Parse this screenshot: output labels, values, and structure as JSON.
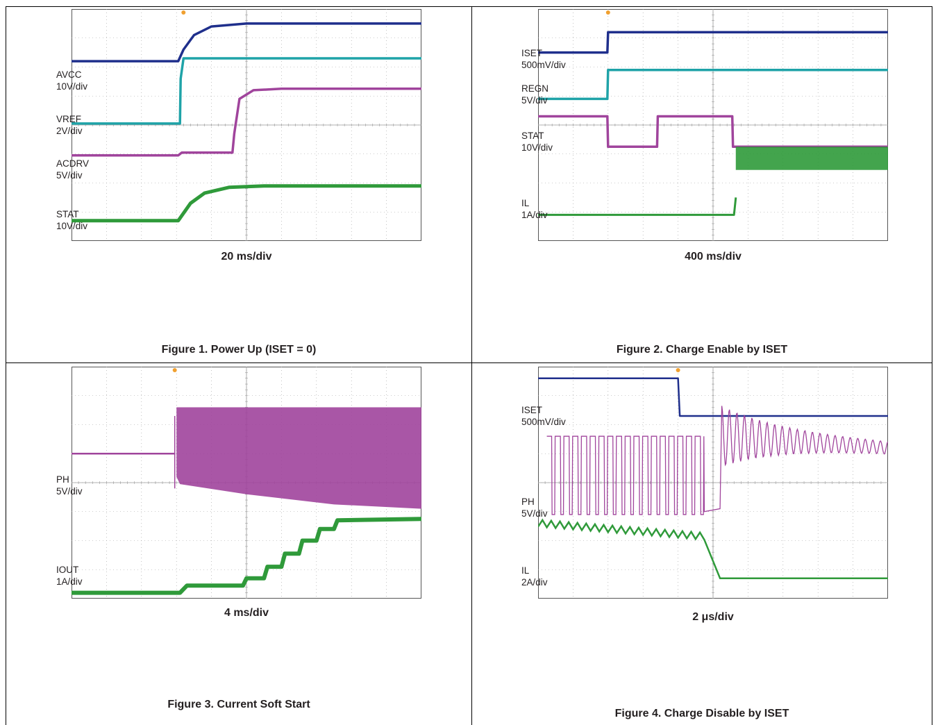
{
  "figures": [
    {
      "caption": "Figure 1. Power Up (ISET = 0)",
      "timebase": "20 ms/div",
      "channels": [
        {
          "label": "AVCC",
          "scale": "10V/div"
        },
        {
          "label": "VREF",
          "scale": "2V/div"
        },
        {
          "label": "ACDRV",
          "scale": "5V/div"
        },
        {
          "label": "STAT",
          "scale": "10V/div"
        }
      ]
    },
    {
      "caption": "Figure 2. Charge Enable by ISET",
      "timebase": "400 ms/div",
      "channels": [
        {
          "label": "ISET",
          "scale": "500mV/div"
        },
        {
          "label": "REGN",
          "scale": "5V/div"
        },
        {
          "label": "STAT",
          "scale": "10V/div"
        },
        {
          "label": "IL",
          "scale": "1A/div"
        }
      ]
    },
    {
      "caption": "Figure 3. Current Soft Start",
      "timebase": "4 ms/div",
      "channels": [
        {
          "label": "PH",
          "scale": "5V/div"
        },
        {
          "label": "IOUT",
          "scale": "1A/div"
        }
      ]
    },
    {
      "caption": "Figure 4. Charge Disable by ISET",
      "timebase": "2 μs/div",
      "channels": [
        {
          "label": "ISET",
          "scale": "500mV/div"
        },
        {
          "label": "PH",
          "scale": "5V/div"
        },
        {
          "label": "IL",
          "scale": "2A/div"
        }
      ]
    }
  ],
  "colors": {
    "blue": "#1f2f8c",
    "cyan": "#1fa3a8",
    "magenta": "#a0449c",
    "green": "#2f9a3a",
    "grid": "#9a9a9a",
    "frame": "#555555",
    "trigger_marker": "#f0a030"
  },
  "chart_data": [
    {
      "type": "line",
      "title": "Figure 1. Power Up (ISET = 0)",
      "xlabel": "20 ms/div",
      "x_units": "div",
      "xlim": [
        0,
        10
      ],
      "ylim": [
        0,
        8
      ],
      "grid": true,
      "series": [
        {
          "name": "AVCC",
          "x": [
            0,
            3.05,
            3.2,
            3.5,
            4.0,
            5.0,
            10
          ],
          "y": [
            6.2,
            6.2,
            6.6,
            7.1,
            7.4,
            7.5,
            7.5
          ]
        },
        {
          "name": "VREF",
          "x": [
            0,
            3.1,
            3.12,
            3.2,
            10
          ],
          "y": [
            4.05,
            4.05,
            5.6,
            6.3,
            6.3
          ]
        },
        {
          "name": "ACDRV",
          "x": [
            0,
            3.05,
            3.15,
            4.6,
            4.65,
            4.8,
            5.2,
            6,
            10
          ],
          "y": [
            2.95,
            2.95,
            3.05,
            3.05,
            3.7,
            4.9,
            5.2,
            5.25,
            5.25
          ]
        },
        {
          "name": "STAT",
          "x": [
            0,
            3.05,
            3.4,
            3.8,
            4.5,
            5.5,
            10
          ],
          "y": [
            0.7,
            0.7,
            1.3,
            1.65,
            1.85,
            1.9,
            1.9
          ]
        }
      ]
    },
    {
      "type": "line",
      "title": "Figure 2. Charge Enable by ISET",
      "xlabel": "400 ms/div",
      "x_units": "div",
      "xlim": [
        0,
        10
      ],
      "ylim": [
        0,
        8
      ],
      "grid": true,
      "series": [
        {
          "name": "ISET",
          "x": [
            0,
            1.98,
            2.0,
            10
          ],
          "y": [
            6.5,
            6.5,
            7.2,
            7.2
          ]
        },
        {
          "name": "REGN",
          "x": [
            0,
            1.98,
            2.0,
            10
          ],
          "y": [
            4.9,
            4.9,
            5.9,
            5.9
          ]
        },
        {
          "name": "STAT",
          "x": [
            0,
            1.98,
            2.0,
            3.4,
            3.42,
            5.55,
            5.57,
            10
          ],
          "y": [
            4.3,
            4.3,
            3.25,
            3.25,
            4.3,
            4.3,
            3.25,
            3.25
          ]
        },
        {
          "name": "IL",
          "x": [
            0,
            5.6,
            5.65,
            5.68,
            10
          ],
          "y": [
            0.9,
            0.9,
            1.5,
            2.8,
            2.8
          ]
        }
      ]
    },
    {
      "type": "line",
      "title": "Figure 3. Current Soft Start",
      "xlabel": "4 ms/div",
      "x_units": "div",
      "xlim": [
        0,
        10
      ],
      "ylim": [
        0,
        8
      ],
      "grid": true,
      "series": [
        {
          "name": "PH",
          "x": [
            0,
            2.95,
            3.0,
            3.1,
            10
          ],
          "y": [
            5.0,
            5.0,
            4.2,
            6.6,
            6.6
          ]
        },
        {
          "name": "IOUT",
          "x": [
            0,
            3.1,
            3.3,
            4.9,
            5.0,
            5.5,
            5.6,
            6.0,
            6.1,
            6.5,
            6.6,
            7.0,
            7.1,
            7.5,
            7.6,
            10
          ],
          "y": [
            0.2,
            0.2,
            0.45,
            0.45,
            0.7,
            0.7,
            1.1,
            1.1,
            1.55,
            1.55,
            2.0,
            2.0,
            2.4,
            2.4,
            2.7,
            2.75
          ]
        }
      ]
    },
    {
      "type": "line",
      "title": "Figure 4. Charge Disable by ISET",
      "xlabel": "2 μs/div",
      "x_units": "div",
      "xlim": [
        0,
        10
      ],
      "ylim": [
        0,
        8
      ],
      "grid": true,
      "series": [
        {
          "name": "ISET",
          "x": [
            0,
            4.0,
            4.05,
            10
          ],
          "y": [
            7.6,
            7.6,
            6.3,
            6.3
          ]
        },
        {
          "name": "PH",
          "x": [
            0.25,
            4.75,
            5.2,
            10
          ],
          "y": [
            5.6,
            5.6,
            5.6,
            5.2
          ]
        },
        {
          "name": "IL",
          "x": [
            0,
            4.75,
            5.2,
            5.6,
            10
          ],
          "y": [
            2.6,
            2.15,
            0.7,
            0.7,
            0.7
          ]
        }
      ]
    }
  ]
}
